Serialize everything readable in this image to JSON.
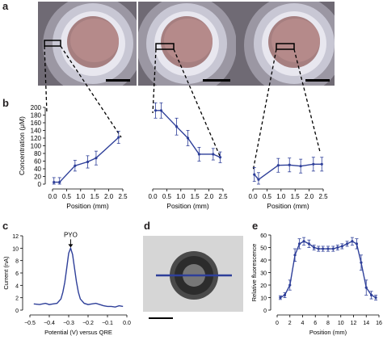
{
  "panels": {
    "a": {
      "letter": "a"
    },
    "b": {
      "letter": "b"
    },
    "c": {
      "letter": "c"
    },
    "d": {
      "letter": "d"
    },
    "e": {
      "letter": "e"
    }
  },
  "chart_data": [
    {
      "id": "b1",
      "type": "line",
      "ylabel": "Concentration (μM)",
      "xlabel": "Position (mm)",
      "xlim": [
        0,
        2.5
      ],
      "ylim": [
        0,
        200
      ],
      "xticks": [
        "0.0",
        "0.5",
        "1.0",
        "1.5",
        "2.0",
        "2.5"
      ],
      "yticks": [
        "0",
        "20",
        "40",
        "60",
        "80",
        "100",
        "120",
        "140",
        "160",
        "180",
        "200"
      ],
      "series": [
        {
          "x": [
            0.05,
            0.25,
            0.8,
            1.25,
            1.55,
            2.35
          ],
          "y": [
            5,
            5,
            48,
            58,
            68,
            122
          ],
          "err": [
            12,
            12,
            14,
            16,
            18,
            16
          ]
        }
      ]
    },
    {
      "id": "b2",
      "type": "line",
      "xlabel": "Position (mm)",
      "xlim": [
        0,
        2.5
      ],
      "ylim": [
        0,
        200
      ],
      "xticks": [
        "0.0",
        "0.5",
        "1.0",
        "1.5",
        "2.0",
        "2.5"
      ],
      "series": [
        {
          "x": [
            0.1,
            0.3,
            0.85,
            1.25,
            1.65,
            2.15,
            2.4
          ],
          "y": [
            192,
            192,
            150,
            120,
            78,
            78,
            70
          ],
          "err": [
            20,
            20,
            22,
            20,
            18,
            15,
            14
          ]
        }
      ]
    },
    {
      "id": "b3",
      "type": "line",
      "xlabel": "Position (mm)",
      "xlim": [
        0,
        2.5
      ],
      "ylim": [
        0,
        200
      ],
      "xticks": [
        "0.0",
        "0.5",
        "1.0",
        "1.5",
        "2.0",
        "2.5"
      ],
      "series": [
        {
          "x": [
            0.05,
            0.2,
            0.9,
            1.3,
            1.7,
            2.15,
            2.45
          ],
          "y": [
            25,
            12,
            49,
            50,
            47,
            52,
            52
          ],
          "err": [
            18,
            18,
            18,
            18,
            18,
            18,
            18
          ]
        }
      ]
    },
    {
      "id": "c",
      "type": "line",
      "ylabel": "Current (nA)",
      "xlabel": "Potential (V) versus QRE",
      "xlim": [
        -0.5,
        0.0
      ],
      "ylim": [
        0,
        12
      ],
      "xticks": [
        "−0.5",
        "−0.4",
        "−0.3",
        "−0.2",
        "−0.1",
        "0.0"
      ],
      "yticks": [
        "0",
        "2",
        "4",
        "6",
        "8",
        "10",
        "12"
      ],
      "annotation": "PYO",
      "series": [
        {
          "x": [
            -0.48,
            -0.45,
            -0.42,
            -0.4,
            -0.38,
            -0.36,
            -0.34,
            -0.33,
            -0.32,
            -0.31,
            -0.3,
            -0.29,
            -0.28,
            -0.27,
            -0.26,
            -0.25,
            -0.24,
            -0.22,
            -0.2,
            -0.18,
            -0.16,
            -0.14,
            -0.12,
            -0.1,
            -0.08,
            -0.06,
            -0.04,
            -0.02
          ],
          "y": [
            1.0,
            0.9,
            1.1,
            0.9,
            1.0,
            1.1,
            1.8,
            2.9,
            4.5,
            6.8,
            9.2,
            10.0,
            9.0,
            6.8,
            4.6,
            2.9,
            1.8,
            1.1,
            0.9,
            1.0,
            1.1,
            0.9,
            0.7,
            0.6,
            0.6,
            0.5,
            0.7,
            0.6
          ]
        }
      ]
    },
    {
      "id": "e",
      "type": "line",
      "ylabel": "Relative fluorescence",
      "xlabel": "Position (mm)",
      "xlim": [
        0,
        16
      ],
      "ylim": [
        0,
        60
      ],
      "xticks": [
        "0",
        "2",
        "4",
        "6",
        "8",
        "10",
        "12",
        "14",
        "16"
      ],
      "yticks": [
        "0",
        "10",
        "20",
        "30",
        "40",
        "50",
        "60"
      ],
      "series": [
        {
          "x": [
            0.5,
            1.2,
            2.0,
            2.8,
            3.5,
            4.2,
            5.0,
            5.8,
            6.5,
            7.2,
            8.0,
            8.8,
            9.5,
            10.2,
            11.0,
            11.8,
            12.5,
            13.2,
            14.0,
            14.8,
            15.5
          ],
          "y": [
            10,
            12,
            20,
            44,
            53,
            55,
            53,
            50,
            49,
            49,
            49,
            49,
            50,
            51,
            53,
            55,
            53,
            38,
            18,
            12,
            10
          ],
          "err": [
            1.5,
            2,
            4,
            5,
            4,
            3,
            3,
            2,
            2,
            2,
            2,
            2,
            2,
            2,
            2,
            3,
            4,
            6,
            6,
            3,
            2
          ]
        }
      ]
    }
  ]
}
